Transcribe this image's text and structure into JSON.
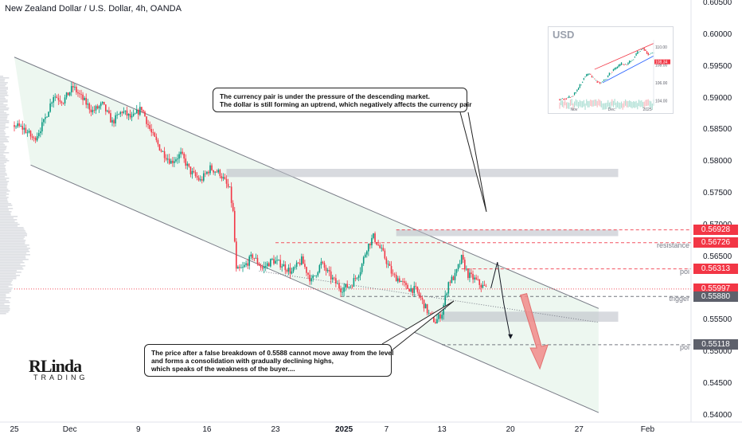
{
  "header": {
    "title": "New Zealand Dollar / U.S. Dollar, 4h, OANDA"
  },
  "colors": {
    "up": "#089981",
    "down": "#f23645",
    "label_red": "#f23645",
    "label_gray": "#5d606b",
    "zone": "#b8bcc4",
    "channel_fill": "#e6f4ea"
  },
  "chart_data": {
    "type": "candlestick",
    "title": "New Zealand Dollar / U.S. Dollar, 4h, OANDA",
    "ylim": [
      0.539,
      0.6055
    ],
    "yticks": [
      "0.60500",
      "0.60000",
      "0.59500",
      "0.59000",
      "0.58500",
      "0.58000",
      "0.57500",
      "0.57000",
      "0.56500",
      "0.56000",
      "0.55500",
      "0.55000",
      "0.54500",
      "0.54000"
    ],
    "xticks": [
      {
        "label": "25",
        "index": 0
      },
      {
        "label": "Dec",
        "index": 34
      },
      {
        "label": "9",
        "index": 76
      },
      {
        "label": "16",
        "index": 118
      },
      {
        "label": "23",
        "index": 160
      },
      {
        "label": "2025",
        "index": 202,
        "bold": true
      },
      {
        "label": "7",
        "index": 228
      },
      {
        "label": "13",
        "index": 262
      },
      {
        "label": "20",
        "index": 304
      },
      {
        "label": "27",
        "index": 346
      },
      {
        "label": "Feb",
        "index": 388
      }
    ],
    "price_path": [
      [
        0,
        0.5858
      ],
      [
        6,
        0.5852
      ],
      [
        12,
        0.5835
      ],
      [
        18,
        0.5862
      ],
      [
        24,
        0.5905
      ],
      [
        30,
        0.5896
      ],
      [
        36,
        0.5918
      ],
      [
        42,
        0.5898
      ],
      [
        48,
        0.588
      ],
      [
        54,
        0.589
      ],
      [
        60,
        0.5862
      ],
      [
        66,
        0.588
      ],
      [
        72,
        0.5868
      ],
      [
        78,
        0.5885
      ],
      [
        84,
        0.5845
      ],
      [
        90,
        0.5818
      ],
      [
        96,
        0.58
      ],
      [
        102,
        0.5812
      ],
      [
        108,
        0.5784
      ],
      [
        114,
        0.577
      ],
      [
        120,
        0.579
      ],
      [
        126,
        0.5782
      ],
      [
        132,
        0.5755
      ],
      [
        134,
        0.572
      ],
      [
        136,
        0.5628
      ],
      [
        140,
        0.5632
      ],
      [
        146,
        0.5652
      ],
      [
        152,
        0.5632
      ],
      [
        158,
        0.5645
      ],
      [
        164,
        0.5638
      ],
      [
        170,
        0.5626
      ],
      [
        176,
        0.5645
      ],
      [
        182,
        0.5612
      ],
      [
        188,
        0.564
      ],
      [
        194,
        0.5618
      ],
      [
        200,
        0.56
      ],
      [
        206,
        0.5605
      ],
      [
        212,
        0.563
      ],
      [
        216,
        0.5665
      ],
      [
        220,
        0.5682
      ],
      [
        226,
        0.5655
      ],
      [
        232,
        0.562
      ],
      [
        236,
        0.5615
      ],
      [
        240,
        0.5602
      ],
      [
        246,
        0.5598
      ],
      [
        250,
        0.558
      ],
      [
        254,
        0.556
      ],
      [
        258,
        0.5548
      ],
      [
        262,
        0.5562
      ],
      [
        266,
        0.561
      ],
      [
        270,
        0.562
      ],
      [
        274,
        0.5648
      ],
      [
        278,
        0.5622
      ],
      [
        282,
        0.5615
      ],
      [
        286,
        0.5605
      ],
      [
        290,
        0.56
      ]
    ],
    "candle_count": 290,
    "channel": {
      "upper": [
        [
          0,
          0.5965
        ],
        [
          358,
          0.5569
        ]
      ],
      "lower": [
        [
          10,
          0.5795
        ],
        [
          358,
          0.5405
        ]
      ]
    },
    "future_arrow": [
      [
        292,
        0.5601
      ],
      [
        296,
        0.5642
      ],
      [
        300,
        0.5575
      ],
      [
        304,
        0.5522
      ]
    ],
    "target_arrow": [
      [
        312,
        0.559
      ],
      [
        322,
        0.5474
      ]
    ],
    "levels": [
      {
        "price": 0.56928,
        "label": "0.56928",
        "color": "#f23645",
        "style": "dashed",
        "from": 234
      },
      {
        "price": 0.56726,
        "label": "0.56726",
        "color": "#f23645",
        "style": "dashed",
        "from": 160,
        "annotation": "resistance"
      },
      {
        "price": 0.56313,
        "label": "0.56313",
        "color": "#f23645",
        "style": "dashed",
        "from": 274,
        "annotation": "poi"
      },
      {
        "price": 0.55997,
        "label": "0.55997",
        "color": "#f23645",
        "style": "dotted",
        "from": 0,
        "current": true
      },
      {
        "price": 0.5588,
        "label": "0.55880",
        "color": "#5d606b",
        "style": "dashed",
        "from": 200,
        "annotation": "trigger"
      },
      {
        "price": 0.55118,
        "label": "0.55118",
        "color": "#5d606b",
        "style": "dashed",
        "from": 262,
        "annotation": "poi"
      }
    ],
    "zones": [
      {
        "from": 130,
        "to": 370,
        "top": 0.5789,
        "bottom": 0.5776
      },
      {
        "from": 234,
        "to": 370,
        "top": 0.5693,
        "bottom": 0.5683
      },
      {
        "from": 262,
        "to": 370,
        "top": 0.5564,
        "bottom": 0.5548
      }
    ]
  },
  "inset": {
    "title": "USD",
    "yticks": [
      "110.00",
      "108.00",
      "106.00",
      "104.00"
    ],
    "xticks": [
      "Nov",
      "Dec",
      "2025"
    ],
    "path": [
      [
        0,
        104.2
      ],
      [
        6,
        104.3
      ],
      [
        10,
        104.6
      ],
      [
        14,
        105.4
      ],
      [
        18,
        106.6
      ],
      [
        22,
        107.0
      ],
      [
        26,
        106.3
      ],
      [
        30,
        106.0
      ],
      [
        34,
        106.4
      ],
      [
        38,
        107.2
      ],
      [
        42,
        107.6
      ],
      [
        46,
        108.1
      ],
      [
        50,
        108.0
      ],
      [
        54,
        108.6
      ],
      [
        58,
        109.4
      ],
      [
        62,
        109.9
      ],
      [
        66,
        109.2
      ],
      [
        70,
        109.4
      ]
    ],
    "current": "108.34"
  },
  "annotations": {
    "top_callout": [
      "The currency pair is under the pressure of the descending market.",
      "The dollar is still forming an uptrend, which negatively affects the currency pair"
    ],
    "bottom_callout": [
      "The price after a false breakdown of 0.5588 cannot move away from the level",
      "and forms a consolidation with gradually declining highs,",
      "which speaks of the weakness of the buyer...."
    ]
  },
  "logo": {
    "main": "RLinda",
    "sub": "TRADING"
  }
}
